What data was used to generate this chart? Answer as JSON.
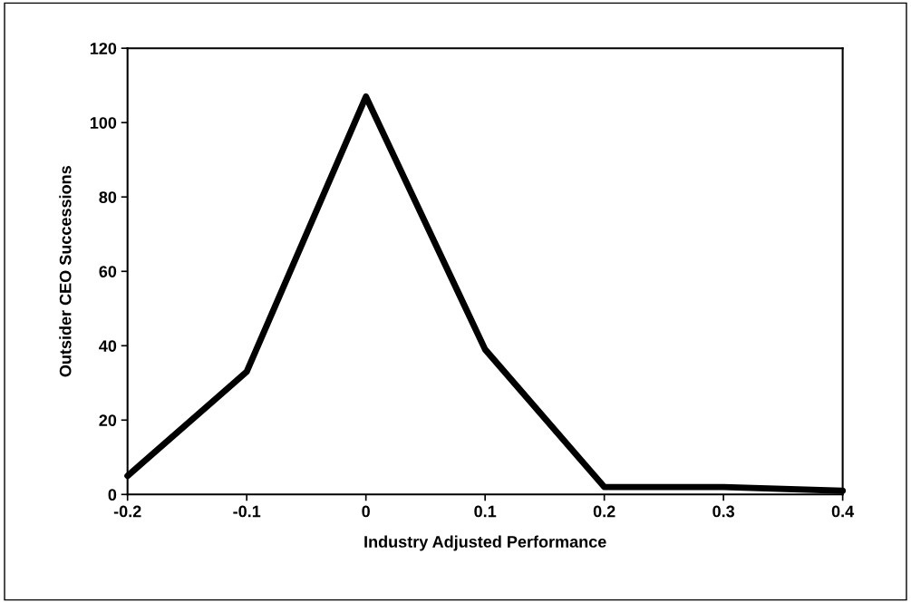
{
  "chart_data": {
    "type": "line",
    "xlabel": "Industry Adjusted Performance",
    "ylabel": "Outsider CEO Successions",
    "x": [
      -0.2,
      -0.1,
      0,
      0.1,
      0.2,
      0.3,
      0.4
    ],
    "series": [
      {
        "color": "#000000",
        "values": [
          5,
          33,
          107,
          39,
          2,
          2,
          1
        ]
      }
    ],
    "xlim": [
      -0.2,
      0.4
    ],
    "xticks": [
      -0.2,
      -0.1,
      0,
      0.1,
      0.2,
      0.3,
      0.4
    ],
    "ylim": [
      0,
      120
    ],
    "yticks": [
      0,
      20,
      40,
      60,
      80,
      100,
      120
    ],
    "grid": false,
    "legend": false,
    "marker": "none",
    "line_style": "solid"
  }
}
